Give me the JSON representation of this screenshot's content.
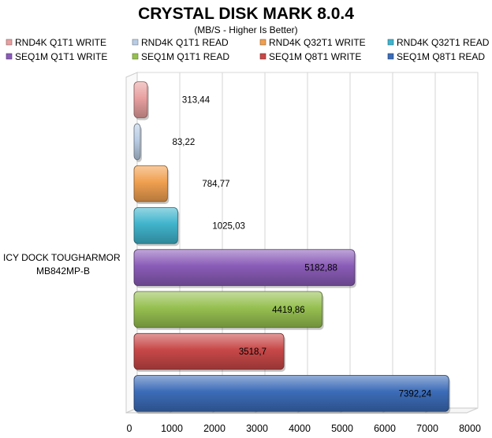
{
  "chart_data": {
    "type": "bar",
    "orientation": "horizontal",
    "title": "CRYSTAL DISK MARK 8.0.4",
    "subtitle": "(MB/S - Higher Is Better)",
    "category_label_lines": [
      "ICY DOCK TOUGHARMOR",
      "MB842MP-B"
    ],
    "xlim": [
      0,
      8000
    ],
    "x_ticks": [
      0,
      1000,
      2000,
      3000,
      4000,
      5000,
      6000,
      7000,
      8000
    ],
    "grid": true,
    "legend_position": "top",
    "series": [
      {
        "name": "RND4K Q1T1 WRITE",
        "value": 313.44,
        "label": "313,44",
        "color": "#e8a0a0"
      },
      {
        "name": "RND4K Q1T1 READ",
        "value": 83.22,
        "label": "83,22",
        "color": "#b8cce4"
      },
      {
        "name": "RND4K Q32T1 WRITE",
        "value": 784.77,
        "label": "784,77",
        "color": "#f0a050"
      },
      {
        "name": "RND4K Q32T1 READ",
        "value": 1025.03,
        "label": "1025,03",
        "color": "#40b4cc"
      },
      {
        "name": "SEQ1M Q1T1 WRITE",
        "value": 5182.88,
        "label": "5182,88",
        "color": "#8a5cb8"
      },
      {
        "name": "SEQ1M Q1T1 READ",
        "value": 4419.86,
        "label": "4419,86",
        "color": "#96c050"
      },
      {
        "name": "SEQ1M Q8T1 WRITE",
        "value": 3518.7,
        "label": "3518,7",
        "color": "#c84848"
      },
      {
        "name": "SEQ1M Q8T1 READ",
        "value": 7392.24,
        "label": "7392,24",
        "color": "#3c6cb8"
      }
    ]
  }
}
